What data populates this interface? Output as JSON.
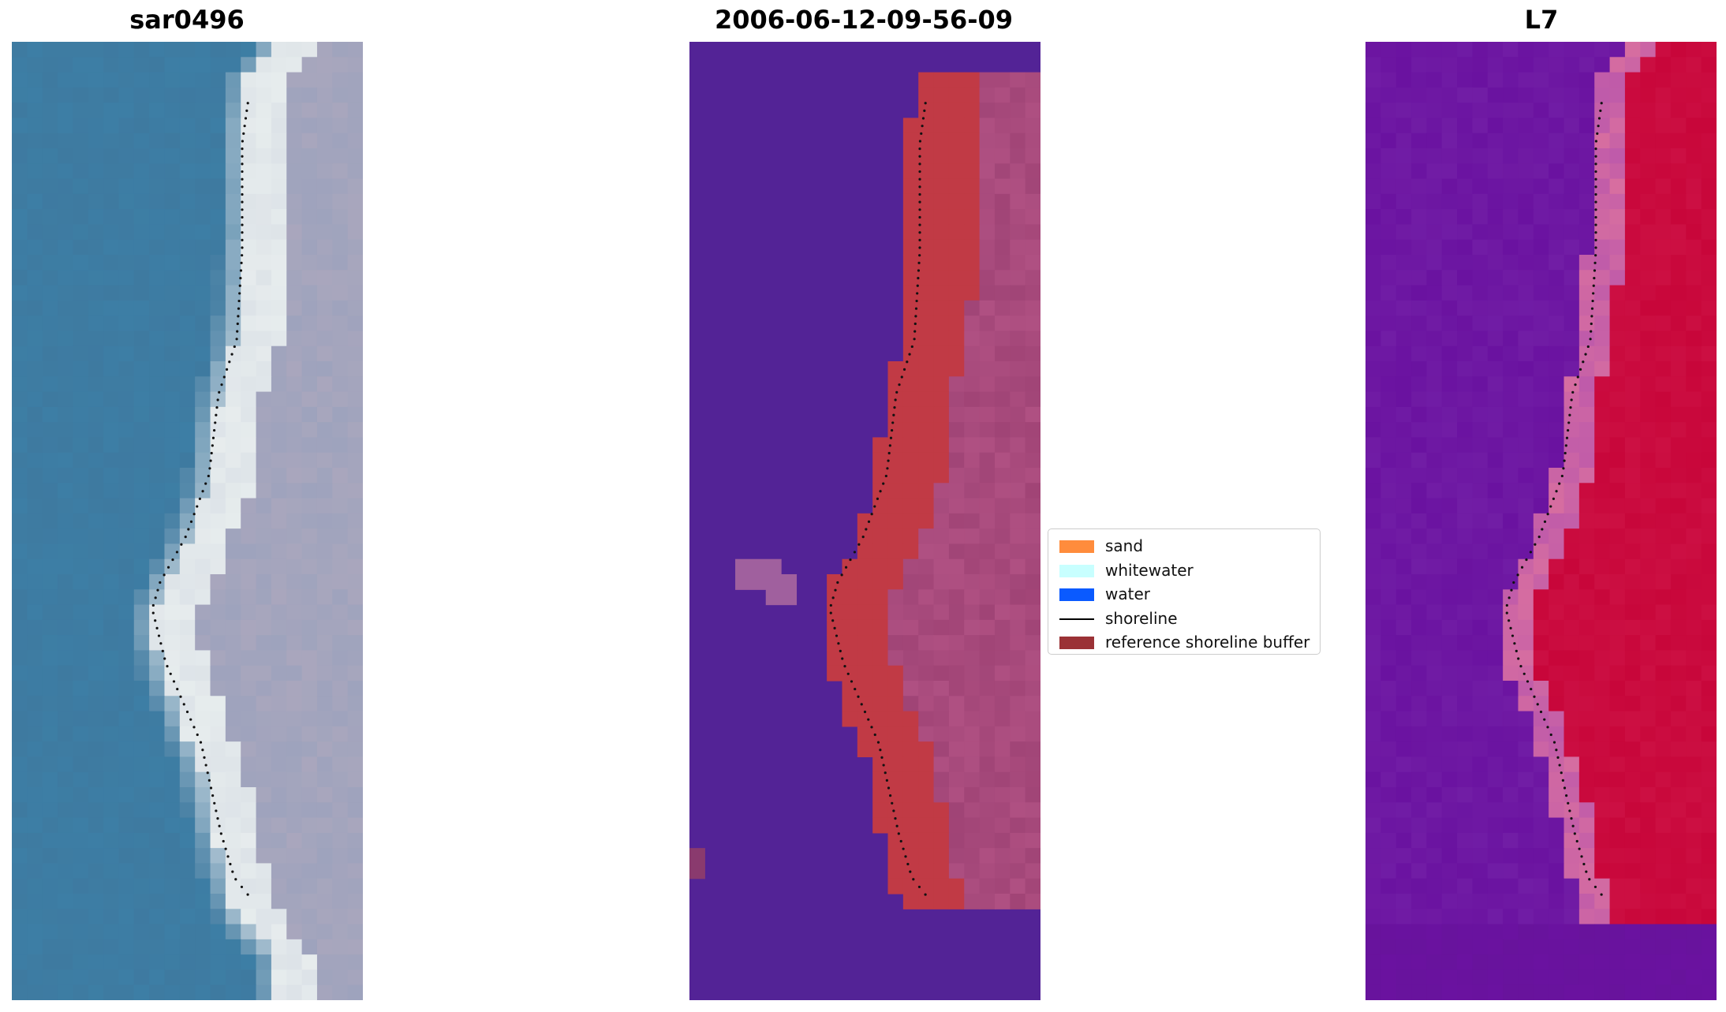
{
  "panels": [
    {
      "title": "sar0496",
      "kind": "rgb-image"
    },
    {
      "title": "2006-06-12-09-56-09",
      "kind": "classification-image"
    },
    {
      "title": "L7",
      "kind": "index-image"
    }
  ],
  "legend": {
    "items": [
      {
        "label": "sand",
        "color": "#ff8c3c",
        "type": "patch"
      },
      {
        "label": "whitewater",
        "color": "#c8ffff",
        "type": "patch"
      },
      {
        "label": "water",
        "color": "#0a5aff",
        "type": "patch"
      },
      {
        "label": "shoreline",
        "color": "#000000",
        "type": "line"
      },
      {
        "label": "reference shoreline buffer",
        "color": "#9b3236",
        "type": "patch"
      }
    ]
  },
  "colors": {
    "water_rgb": "#3e7aa0",
    "beach_rgb": "#dde3e8",
    "land_rgb": "#9ea3bd",
    "class_background": "#532396",
    "buffer_overlay": "#c13a45",
    "index_low": "#6a12a0",
    "index_high": "#c8063a"
  }
}
